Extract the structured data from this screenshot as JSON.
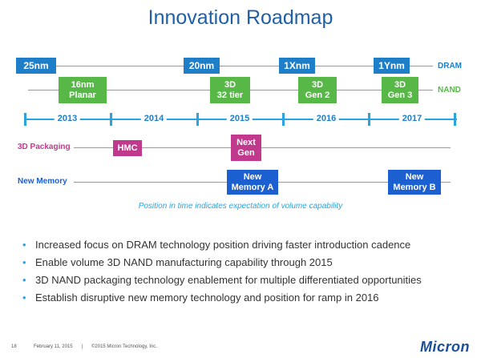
{
  "title": "Innovation Roadmap",
  "dram": {
    "row_label": "DRAM",
    "items": [
      "25nm",
      "20nm",
      "1Xnm",
      "1Ynm"
    ]
  },
  "nand": {
    "row_label": "NAND",
    "items": [
      "16nm\nPlanar",
      "3D\n32 tier",
      "3D\nGen 2",
      "3D\nGen 3"
    ]
  },
  "timeline": {
    "years": [
      "2013",
      "2014",
      "2015",
      "2016",
      "2017"
    ]
  },
  "packaging": {
    "row_label": "3D Packaging",
    "items": [
      "HMC",
      "Next\nGen"
    ]
  },
  "new_memory": {
    "row_label": "New Memory",
    "items": [
      "New\nMemory A",
      "New\nMemory B"
    ]
  },
  "caption": "Position in time indicates expectation of volume capability",
  "bullets": [
    "Increased focus on DRAM technology position driving faster introduction cadence",
    "Enable volume 3D NAND manufacturing capability through 2015",
    "3D NAND packaging technology enablement for multiple differentiated opportunities",
    "Establish disruptive new memory technology and position for ramp in 2016"
  ],
  "footer": {
    "page": "18",
    "date": "February 11, 2015",
    "separator": "|",
    "copyright": "©2015 Micron Technology, Inc."
  },
  "logo": "Micron",
  "colors": {
    "title": "#1f5fa8",
    "dram": "#1e7ec8",
    "nand": "#57b848",
    "packaging": "#c0398c",
    "new_memory": "#1b5fd1",
    "timeline": "#2aa3e0"
  }
}
